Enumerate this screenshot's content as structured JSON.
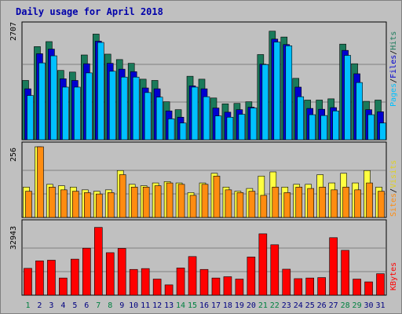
{
  "window": {
    "title": "Daily usage for April 2018"
  },
  "chart_data": [
    {
      "type": "bar",
      "panel": "pages-files-hits",
      "categories": [
        "1",
        "2",
        "3",
        "4",
        "5",
        "6",
        "7",
        "8",
        "9",
        "10",
        "11",
        "12",
        "13",
        "14",
        "15",
        "16",
        "17",
        "18",
        "19",
        "20",
        "21",
        "22",
        "23",
        "24",
        "25",
        "26",
        "27",
        "28",
        "29",
        "30",
        "31"
      ],
      "ymax_label": "2707",
      "ylim": [
        0,
        2707
      ],
      "series": [
        {
          "name": "Hits",
          "color": "#1a7a5a",
          "values": [
            1420,
            2230,
            2350,
            1660,
            1620,
            2030,
            2530,
            2050,
            1920,
            1830,
            1450,
            1420,
            910,
            720,
            1520,
            1450,
            1000,
            860,
            870,
            910,
            2040,
            2600,
            2460,
            1470,
            950,
            950,
            980,
            2290,
            1820,
            920,
            950
          ]
        },
        {
          "name": "Files",
          "color": "#0000d0",
          "values": [
            1220,
            2060,
            2170,
            1460,
            1420,
            1820,
            2360,
            1830,
            1690,
            1630,
            1240,
            1220,
            690,
            540,
            1290,
            1220,
            760,
            660,
            720,
            780,
            1810,
            2410,
            2280,
            1260,
            750,
            730,
            770,
            2140,
            1580,
            720,
            670
          ]
        },
        {
          "name": "Pages",
          "color": "#00c0ff",
          "values": [
            1060,
            1840,
            2010,
            1260,
            1260,
            1600,
            2330,
            1640,
            1500,
            1500,
            1130,
            1020,
            500,
            400,
            1260,
            1030,
            570,
            540,
            610,
            760,
            1800,
            2340,
            2250,
            1030,
            600,
            580,
            690,
            2020,
            1370,
            600,
            400
          ]
        }
      ]
    },
    {
      "type": "bar",
      "panel": "visits-sites",
      "categories": [
        "1",
        "2",
        "3",
        "4",
        "5",
        "6",
        "7",
        "8",
        "9",
        "10",
        "11",
        "12",
        "13",
        "14",
        "15",
        "16",
        "17",
        "18",
        "19",
        "20",
        "21",
        "22",
        "23",
        "24",
        "25",
        "26",
        "27",
        "28",
        "29",
        "30",
        "31"
      ],
      "ymax_label": "256",
      "ylim": [
        0,
        256
      ],
      "series": [
        {
          "name": "Visits",
          "color": "#ffff40",
          "values": [
            110,
            256,
            120,
            115,
            110,
            100,
            95,
            100,
            170,
            120,
            115,
            125,
            130,
            125,
            90,
            125,
            160,
            110,
            95,
            105,
            150,
            165,
            110,
            120,
            120,
            155,
            125,
            160,
            125,
            170,
            110
          ]
        },
        {
          "name": "Sites",
          "color": "#ff8c10",
          "values": [
            95,
            256,
            110,
            100,
            95,
            90,
            85,
            90,
            155,
            110,
            110,
            115,
            125,
            120,
            80,
            120,
            150,
            100,
            90,
            95,
            80,
            110,
            90,
            110,
            105,
            110,
            100,
            110,
            100,
            125,
            95
          ]
        }
      ]
    },
    {
      "type": "bar",
      "panel": "kbytes",
      "categories": [
        "1",
        "2",
        "3",
        "4",
        "5",
        "6",
        "7",
        "8",
        "9",
        "10",
        "11",
        "12",
        "13",
        "14",
        "15",
        "16",
        "17",
        "18",
        "19",
        "20",
        "21",
        "22",
        "23",
        "24",
        "25",
        "26",
        "27",
        "28",
        "29",
        "30",
        "31"
      ],
      "ymax_label": "32943",
      "ylim": [
        0,
        32943
      ],
      "series": [
        {
          "name": "KBytes",
          "color": "#ff0000",
          "values": [
            12500,
            16000,
            16300,
            8000,
            16800,
            21900,
            31600,
            19800,
            21800,
            12000,
            12400,
            7500,
            4800,
            12700,
            18000,
            12000,
            8000,
            8600,
            7500,
            17800,
            28600,
            23500,
            12100,
            7700,
            8000,
            8200,
            26800,
            20900,
            7500,
            6200,
            10000
          ]
        }
      ]
    }
  ],
  "legend": {
    "panel1": {
      "pages": "Pages",
      "sep": "/",
      "files": "Files",
      "hits": "Hits"
    },
    "panel2": {
      "sites": "Sites",
      "sep": "/",
      "visits": "Visits"
    },
    "panel3": {
      "kbytes": "KBytes"
    }
  },
  "weekend_days": [
    "1",
    "7",
    "8",
    "14",
    "15",
    "21",
    "22",
    "28",
    "29"
  ],
  "colors": {
    "weekday": "#000080",
    "weekend": "#008040",
    "title": "#0000aa",
    "panel_bg": "#c0c0c0",
    "grid": "#808080"
  }
}
